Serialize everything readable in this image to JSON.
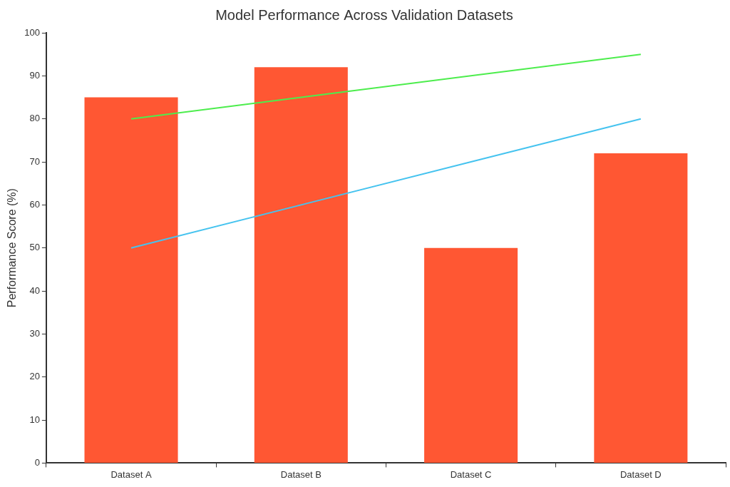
{
  "chart_data": {
    "type": "bar",
    "title": "Model Performance Across Validation Datasets",
    "y_label": "Performance Score (%)",
    "categories": [
      "Dataset A",
      "Dataset B",
      "Dataset C",
      "Dataset D"
    ],
    "series": [
      {
        "type": "bar",
        "color": "#ff5733",
        "values": [
          85,
          92,
          50,
          72
        ]
      },
      {
        "type": "line",
        "color": "#4ded4d",
        "values": [
          80,
          85,
          90,
          95
        ]
      },
      {
        "type": "line",
        "color": "#45c3ef",
        "values": [
          50,
          60,
          70,
          80
        ]
      }
    ],
    "ylim": [
      0,
      100
    ],
    "yticks": [
      0,
      10,
      20,
      30,
      40,
      50,
      60,
      70,
      80,
      90,
      100
    ],
    "grid": false
  }
}
